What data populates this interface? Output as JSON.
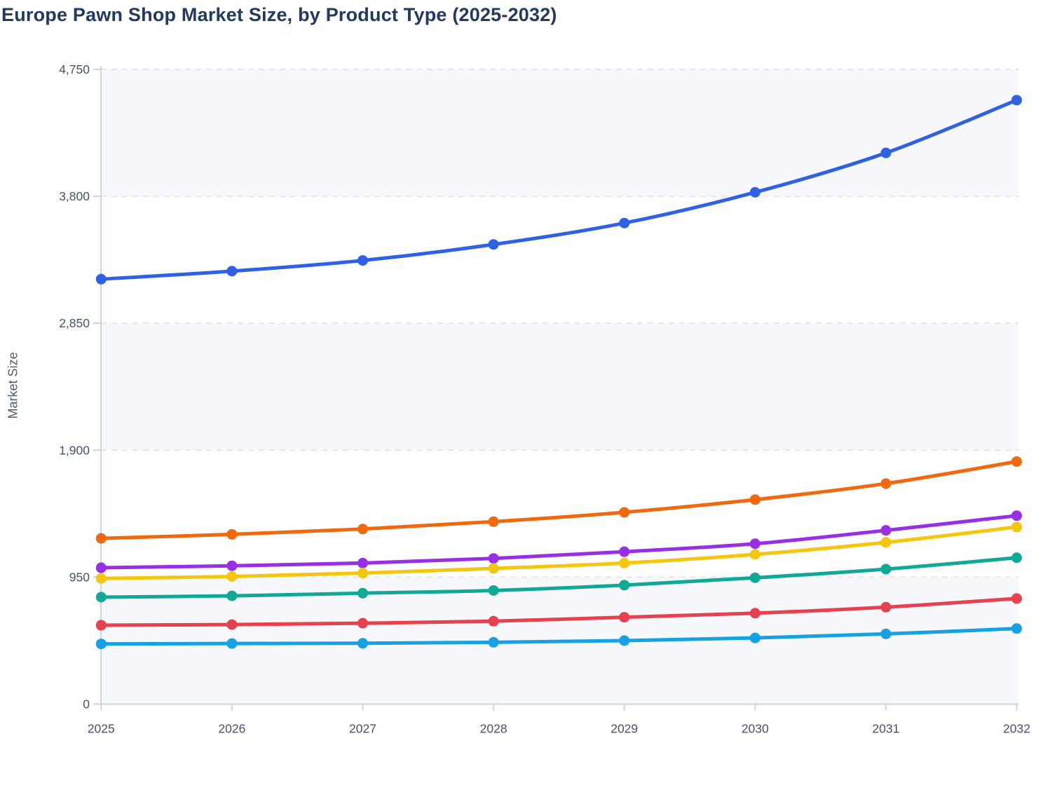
{
  "page": {
    "title": "Europe Pawn Shop Market Size, by Product Type (2025-2032)"
  },
  "colors": {
    "title_text": "#223a5e",
    "axis_text": "#47536b",
    "axis_title_text": "#4e5a6e",
    "axis_line": "#c9d4ed",
    "gridline": "#e3e6ec",
    "band": "#f6f8fb",
    "background": "#ffffff"
  },
  "chart_data": {
    "type": "line",
    "title": "Europe Pawn Shop Market Size, by Product Type (2025-2032)",
    "xlabel": "",
    "ylabel": "Market Size",
    "x": [
      2025,
      2026,
      2027,
      2028,
      2029,
      2030,
      2031,
      2032
    ],
    "y_ticks": [
      0,
      950,
      1900,
      2850,
      3800,
      4750
    ],
    "ylim": [
      0,
      4750
    ],
    "grid": "horizontal-dashed",
    "plot_bands": "alternating-gray-between-gridlines",
    "legend_position": "none",
    "marker": "circle",
    "smooth": true,
    "series": [
      {
        "name": "series-blue",
        "color": "#2e61e6",
        "values": [
          3180,
          3240,
          3320,
          3440,
          3600,
          3830,
          4125,
          4520
        ]
      },
      {
        "name": "series-orange",
        "color": "#f2690d",
        "values": [
          1240,
          1270,
          1310,
          1365,
          1435,
          1530,
          1650,
          1815
        ]
      },
      {
        "name": "series-purple",
        "color": "#982ee6",
        "values": [
          1020,
          1035,
          1055,
          1090,
          1140,
          1200,
          1300,
          1410
        ]
      },
      {
        "name": "series-yellow",
        "color": "#f6c60f",
        "values": [
          940,
          955,
          980,
          1015,
          1055,
          1120,
          1210,
          1325
        ]
      },
      {
        "name": "series-teal",
        "color": "#10a997",
        "values": [
          800,
          810,
          830,
          850,
          890,
          945,
          1010,
          1095
        ]
      },
      {
        "name": "series-red",
        "color": "#e8404d",
        "values": [
          590,
          595,
          605,
          620,
          650,
          680,
          725,
          790
        ]
      },
      {
        "name": "series-sky",
        "color": "#14a1e6",
        "values": [
          450,
          453,
          455,
          462,
          475,
          495,
          525,
          565
        ]
      }
    ]
  }
}
